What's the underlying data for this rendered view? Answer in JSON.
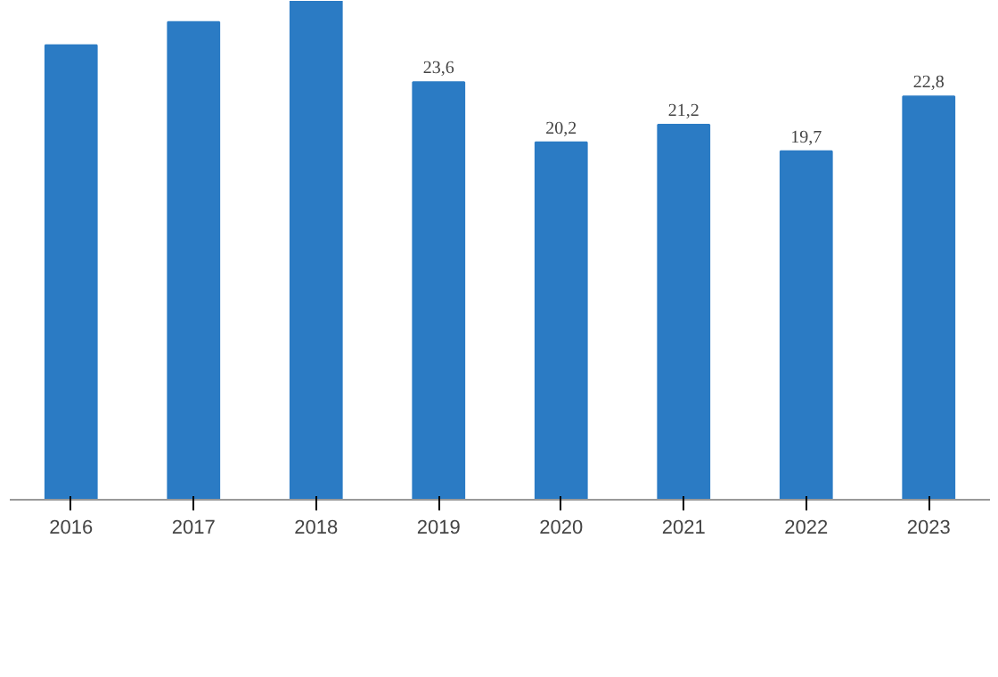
{
  "chart_data": {
    "type": "bar",
    "categories": [
      "2016",
      "2017",
      "2018",
      "2019",
      "2020",
      "2021",
      "2022",
      "2023"
    ],
    "values": [
      25.7,
      27.0,
      28.2,
      23.6,
      20.2,
      21.2,
      19.7,
      22.8
    ],
    "value_labels": [
      null,
      null,
      null,
      "23,6",
      "20,2",
      "21,2",
      "19,7",
      "22,8"
    ],
    "relative": false,
    "color": "#2b7bc4",
    "grid": false
  }
}
